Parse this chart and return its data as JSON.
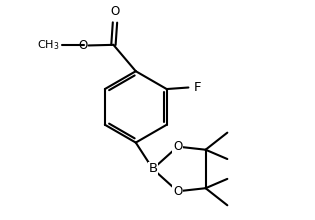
{
  "bg_color": "#ffffff",
  "line_color": "#000000",
  "line_width": 1.5,
  "font_size": 8.5,
  "figsize": [
    3.15,
    2.2
  ],
  "dpi": 100,
  "xlim": [
    0,
    9
  ],
  "ylim": [
    0,
    7
  ]
}
